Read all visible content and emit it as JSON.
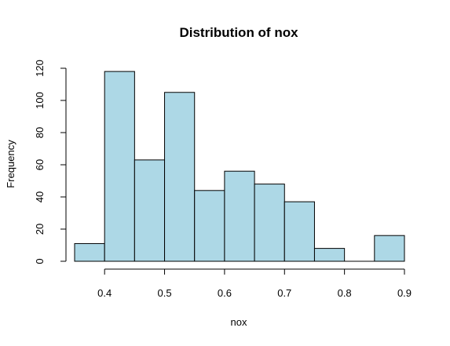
{
  "chart_data": {
    "type": "bar",
    "subtype": "histogram",
    "title": "Distribution of nox",
    "xlabel": "nox",
    "ylabel": "Frequency",
    "bin_edges": [
      0.35,
      0.4,
      0.45,
      0.5,
      0.55,
      0.6,
      0.65,
      0.7,
      0.75,
      0.8,
      0.85,
      0.9
    ],
    "values": [
      11,
      118,
      63,
      105,
      44,
      56,
      48,
      37,
      8,
      0,
      16
    ],
    "xlim": [
      0.35,
      0.9
    ],
    "ylim": [
      0,
      120
    ],
    "x_ticks": [
      0.4,
      0.5,
      0.6,
      0.7,
      0.8,
      0.9
    ],
    "x_tick_labels": [
      "0.4",
      "0.5",
      "0.6",
      "0.7",
      "0.8",
      "0.9"
    ],
    "y_ticks": [
      0,
      20,
      40,
      60,
      80,
      100,
      120
    ],
    "y_tick_labels": [
      "0",
      "20",
      "40",
      "60",
      "80",
      "100",
      "120"
    ],
    "bar_color": "#add8e6",
    "grid": false
  }
}
